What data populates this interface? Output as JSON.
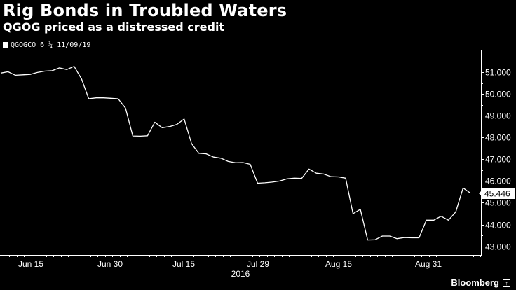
{
  "chart_data": {
    "type": "line",
    "title": "Rig Bonds in Troubled Waters",
    "subtitle": "QGOG priced as a distressed credit",
    "legend": [
      "QGOGCO 6 ¼ 11/09/19"
    ],
    "xlabel": "2016",
    "ylabel": "",
    "x_tick_labels": [
      "Jun 15",
      "Jun 30",
      "Jul 15",
      "Jul 29",
      "Aug 15",
      "Aug 31"
    ],
    "y_ticks": [
      43,
      44,
      45,
      46,
      47,
      48,
      49,
      50,
      51
    ],
    "y_tick_labels": [
      "43.000",
      "44.000",
      "45.000",
      "46.000",
      "47.000",
      "48.000",
      "49.000",
      "50.000",
      "51.000"
    ],
    "ylim": [
      42.6,
      52.0
    ],
    "last_value_label": "45.446",
    "series": [
      {
        "name": "QGOGCO 6 ¼ 11/09/19",
        "values": [
          50.96,
          51.02,
          50.86,
          50.88,
          50.9,
          50.99,
          51.05,
          51.07,
          51.2,
          51.12,
          51.27,
          50.7,
          49.78,
          49.82,
          49.82,
          49.8,
          49.78,
          49.35,
          48.07,
          48.06,
          48.08,
          48.7,
          48.45,
          48.5,
          48.6,
          48.85,
          47.72,
          47.27,
          47.25,
          47.1,
          47.05,
          46.9,
          46.84,
          46.85,
          46.77,
          45.9,
          45.92,
          45.95,
          46.0,
          46.1,
          46.13,
          46.12,
          46.55,
          46.36,
          46.32,
          46.2,
          46.19,
          46.13,
          44.5,
          44.7,
          43.29,
          43.3,
          43.47,
          43.47,
          43.35,
          43.4,
          43.39,
          43.39,
          44.2,
          44.2,
          44.38,
          44.2,
          44.58,
          45.68,
          45.446
        ]
      }
    ]
  },
  "footer": {
    "brand": "Bloomberg",
    "brand_icon": "bloomberg-chart-icon"
  },
  "colors": {
    "background": "#000000",
    "line": "#ffffff"
  }
}
